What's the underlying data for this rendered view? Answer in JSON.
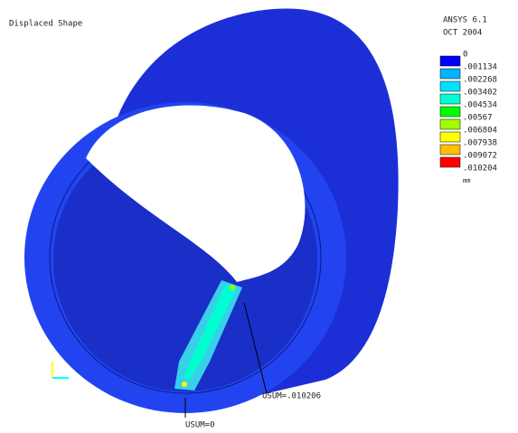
{
  "header": {
    "title": "Displaced Shape",
    "program": "ANSYS 6.1",
    "date": "OCT 2004"
  },
  "legend": {
    "levels": [
      "0",
      ".001134",
      ".002268",
      ".003402",
      ".004534",
      ".00567",
      ".006804",
      ".007938",
      ".009072",
      ".010204"
    ],
    "colors": [
      "#0000ff",
      "#00b4ff",
      "#00e0ff",
      "#00ffd0",
      "#00ff00",
      "#a0ff00",
      "#ffff00",
      "#ffc000",
      "#ff0000"
    ],
    "unit": "mm"
  },
  "annotations": {
    "max": "USUM=.010206",
    "min": "USUM=0"
  }
}
